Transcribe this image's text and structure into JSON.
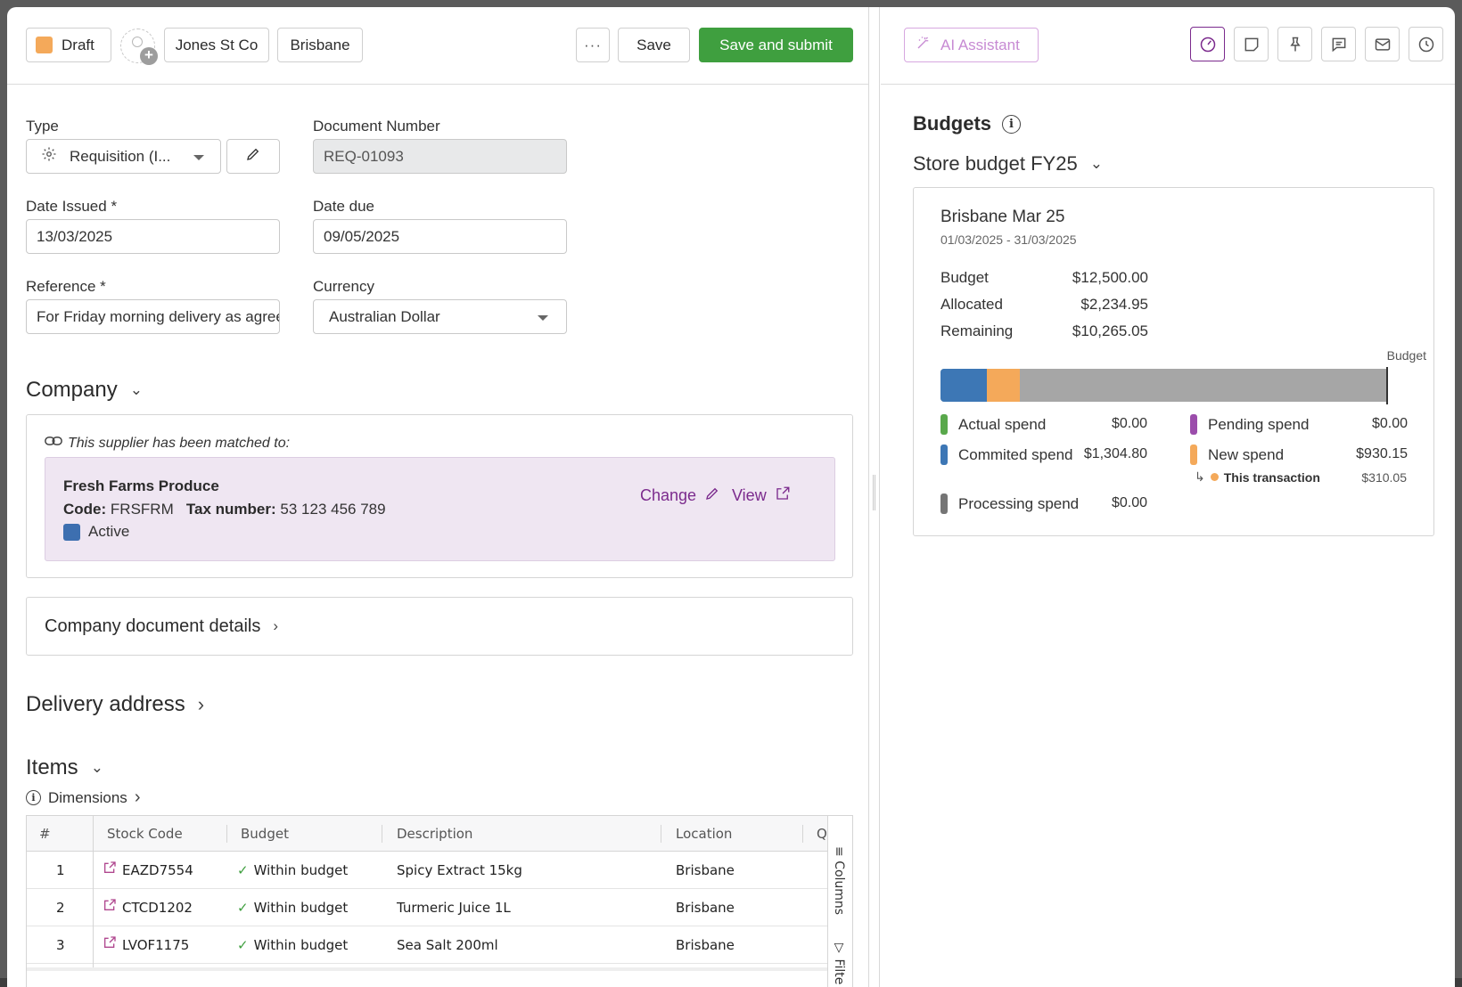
{
  "header": {
    "status_label": "Draft",
    "status_color": "#f4a95a",
    "company_tag": "Jones St Co",
    "city_tag": "Brisbane",
    "more_label": "···",
    "save_label": "Save",
    "submit_label": "Save and submit",
    "submit_color": "#3f9f3f"
  },
  "form": {
    "type_label": "Type",
    "type_value": "Requisition (I...",
    "docnum_label": "Document Number",
    "docnum_value": "REQ-01093",
    "date_issued_label": "Date Issued *",
    "date_issued_value": "13/03/2025",
    "date_due_label": "Date due",
    "date_due_value": "09/05/2025",
    "reference_label": "Reference *",
    "reference_value": "For Friday morning delivery as agreed",
    "currency_label": "Currency",
    "currency_value": "Australian Dollar"
  },
  "company": {
    "heading": "Company",
    "matched_text": "This supplier has been matched to:",
    "supplier_name": "Fresh Farms Produce",
    "code_label": "Code:",
    "code_value": "FRSFRM",
    "tax_label": "Tax number:",
    "tax_value": "53 123 456 789",
    "status": "Active",
    "status_color": "#3d6fb0",
    "change_label": "Change",
    "view_label": "View",
    "details_label": "Company document details"
  },
  "delivery": {
    "heading": "Delivery address"
  },
  "items": {
    "heading": "Items",
    "dimensions_label": "Dimensions",
    "columns": [
      "#",
      "Stock Code",
      "Budget",
      "Description",
      "Location",
      "Qu"
    ],
    "rows": [
      {
        "num": "1",
        "code": "EAZD7554",
        "budget": "Within budget",
        "desc": "Spicy Extract 15kg",
        "location": "Brisbane"
      },
      {
        "num": "2",
        "code": "CTCD1202",
        "budget": "Within budget",
        "desc": "Turmeric Juice 1L",
        "location": "Brisbane"
      },
      {
        "num": "3",
        "code": "LVOF1175",
        "budget": "Within budget",
        "desc": "Sea Salt 200ml",
        "location": "Brisbane"
      }
    ],
    "side_tabs": [
      "Columns",
      "Filte"
    ]
  },
  "right": {
    "ai_label": "AI Assistant",
    "icons": [
      "budget-dial-icon",
      "note-icon",
      "pin-icon",
      "comment-icon",
      "mail-icon",
      "history-icon"
    ],
    "budgets_title": "Budgets",
    "selected_budget": "Store budget FY25",
    "card": {
      "title": "Brisbane Mar 25",
      "range": "01/03/2025 - 31/03/2025",
      "budget_label": "Budget",
      "budget_value": "$12,500.00",
      "allocated_label": "Allocated",
      "allocated_value": "$2,234.95",
      "remaining_label": "Remaining",
      "remaining_value": "$10,265.05",
      "bar_marker_label": "Budget",
      "bar_fractions": {
        "commited": 0.1044,
        "new": 0.0744
      },
      "colors": {
        "actual": "#59a84b",
        "commited": "#3d77b5",
        "pending": "#9b4dab",
        "new": "#f4a95a",
        "processing": "#757575",
        "rest": "#a6a6a6"
      },
      "legend": {
        "actual_label": "Actual spend",
        "actual_value": "$0.00",
        "commited_label": "Commited spend",
        "commited_value": "$1,304.80",
        "processing_label": "Processing spend",
        "processing_value": "$0.00",
        "pending_label": "Pending spend",
        "pending_value": "$0.00",
        "new_label": "New spend",
        "new_value": "$930.15",
        "this_label": "This transaction",
        "this_value": "$310.05"
      }
    }
  }
}
